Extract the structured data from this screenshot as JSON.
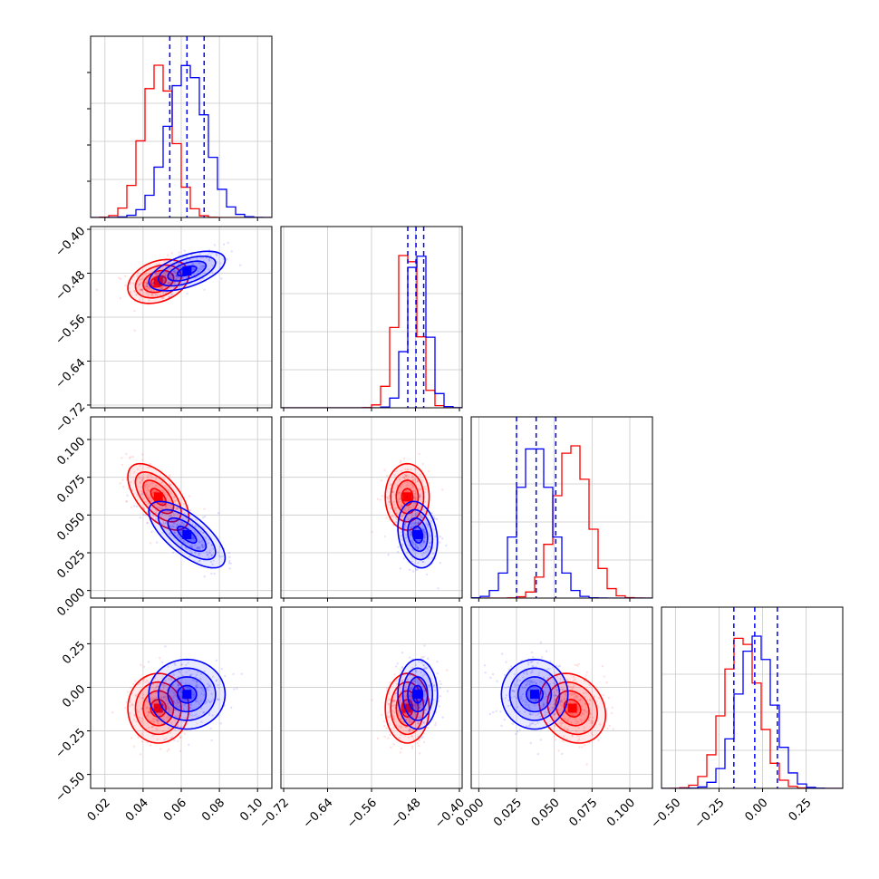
{
  "colors": {
    "series_a": "#ff0000",
    "series_b": "#0000ff",
    "grid": "#c8c8c8",
    "axes": "#000000"
  },
  "chart_data": {
    "type": "scatter",
    "subtype": "corner-plot",
    "parameters": 4,
    "grid": true,
    "axis_ticks": [
      [
        "0.02",
        "0.04",
        "0.06",
        "0.08",
        "0.10"
      ],
      [
        "−0.72",
        "−0.64",
        "−0.56",
        "−0.48",
        "−0.40"
      ],
      [
        "0.000",
        "0.025",
        "0.050",
        "0.075",
        "0.100"
      ],
      [
        "−0.50",
        "−0.25",
        "0.00",
        "0.25"
      ]
    ],
    "axis_ranges": [
      [
        0.0125,
        0.1075
      ],
      [
        -0.725,
        -0.395
      ],
      [
        -0.005,
        0.115
      ],
      [
        -0.58,
        0.46
      ]
    ],
    "series": [
      {
        "color": "red",
        "mean": [
          0.048,
          -0.495,
          0.062,
          -0.12
        ],
        "std": [
          0.008,
          0.02,
          0.011,
          0.1
        ],
        "corr": [
          [
            0,
            1,
            0.3
          ],
          [
            0,
            2,
            -0.6
          ],
          [
            2,
            3,
            -0.2
          ]
        ]
      },
      {
        "color": "blue",
        "mean": [
          0.063,
          -0.476,
          0.037,
          -0.04
        ],
        "std": [
          0.01,
          0.018,
          0.011,
          0.1
        ],
        "corr": [
          [
            0,
            1,
            0.55
          ],
          [
            0,
            2,
            -0.7
          ],
          [
            1,
            2,
            -0.2
          ]
        ]
      }
    ],
    "quantile_lines": [
      [
        0.054,
        0.063,
        0.072
      ],
      [
        -0.494,
        -0.479,
        -0.465
      ],
      [
        0.025,
        0.038,
        0.051
      ],
      [
        -0.165,
        -0.045,
        0.085
      ]
    ]
  }
}
